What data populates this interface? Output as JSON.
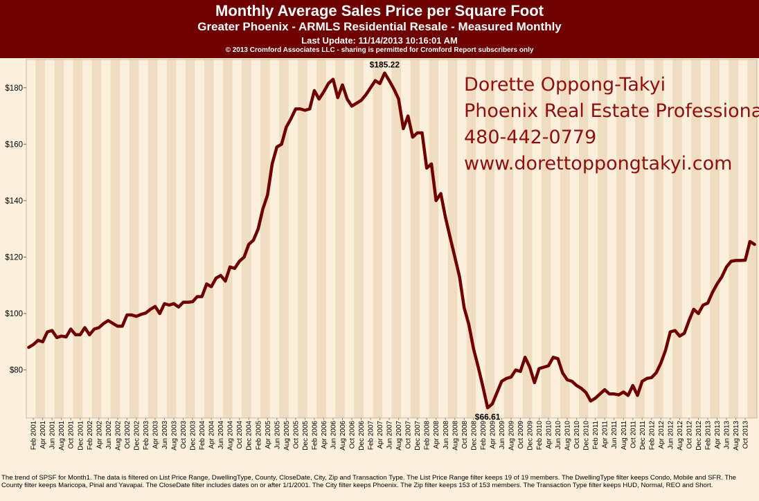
{
  "header": {
    "title": "Monthly Average Sales Price per Square Foot",
    "subtitle": "Greater Phoenix - ARMLS Residential Resale - Measured Monthly",
    "last_update": "Last Update: 11/14/2013 10:16:01 AM",
    "copyright": "© 2013 Cromford Associates LLC - sharing is permitted for Cromford Report subscribers only"
  },
  "contact": {
    "name": "Dorette Oppong-Takyi",
    "role": "Phoenix Real Estate Professional",
    "phone": "480-442-0779",
    "website": "www.dorettoppongtakyi.com"
  },
  "colors": {
    "header_bg": "#6e0000",
    "line": "#6e0000",
    "band_light": "#fcf0dc",
    "band_dark": "#f0dcc0",
    "contact_text": "#8c1010"
  },
  "footer": {
    "note": "The trend of SPSF for Month1. The data is filtered on List Price Range, DwellingType, County, CloseDate, City, Zip and Transaction Type. The List Price Range filter keeps 19 of 19 members. The DwellingType filter keeps Condo, Mobile and SFR. The County filter keeps Maricopa, Pinal and Yavapai. The CloseDate filter includes dates on or after 1/1/2001. The City filter keeps Phoenix. The Zip filter keeps 153 of 153 members. The Transaction Type filter keeps HUD, Normal, REO and Short."
  },
  "chart_data": {
    "type": "line",
    "x_start": "Jan 2001",
    "x_end": "Oct 2013",
    "ylim": [
      63,
      190
    ],
    "y_ticks": [
      80,
      100,
      120,
      140,
      160,
      180
    ],
    "y_tick_labels": [
      "$80",
      "$100",
      "$120",
      "$140",
      "$160",
      "$180"
    ],
    "x_tick_labels": [
      "Feb 2001",
      "Apr 2001",
      "Jun 2001",
      "Aug 2001",
      "Oct 2001",
      "Dec 2001",
      "Feb 2002",
      "Apr 2002",
      "Jun 2002",
      "Aug 2002",
      "Oct 2002",
      "Dec 2002",
      "Feb 2003",
      "Apr 2003",
      "Jun 2003",
      "Aug 2003",
      "Oct 2003",
      "Dec 2003",
      "Feb 2004",
      "Apr 2004",
      "Jun 2004",
      "Aug 2004",
      "Oct 2004",
      "Dec 2004",
      "Feb 2005",
      "Apr 2005",
      "Jun 2005",
      "Aug 2005",
      "Oct 2005",
      "Dec 2005",
      "Feb 2006",
      "Apr 2006",
      "Jun 2006",
      "Aug 2006",
      "Oct 2006",
      "Dec 2006",
      "Feb 2007",
      "Apr 2007",
      "Jun 2007",
      "Aug 2007",
      "Oct 2007",
      "Dec 2007",
      "Feb 2008",
      "Apr 2008",
      "Jun 2008",
      "Aug 2008",
      "Oct 2008",
      "Dec 2008",
      "Feb 2009",
      "Apr 2009",
      "Jun 2009",
      "Aug 2009",
      "Oct 2009",
      "Dec 2009",
      "Feb 2010",
      "Apr 2010",
      "Jun 2010",
      "Aug 2010",
      "Oct 2010",
      "Dec 2010",
      "Feb 2011",
      "Apr 2011",
      "Jun 2011",
      "Aug 2011",
      "Oct 2011",
      "Dec 2011",
      "Feb 2012",
      "Apr 2012",
      "Jun 2012",
      "Aug 2012",
      "Oct 2012",
      "Dec 2012",
      "Feb 2013",
      "Apr 2013",
      "Jun 2013",
      "Aug 2013",
      "Oct 2013"
    ],
    "values": [
      88,
      89,
      90.5,
      90,
      93.5,
      94,
      91.5,
      92,
      91.7,
      94.5,
      92.5,
      92.5,
      95,
      92.5,
      94.5,
      95,
      96.5,
      97.5,
      96.5,
      95.5,
      95.5,
      99.5,
      99.5,
      99,
      99.7,
      100.2,
      101.5,
      102.5,
      100,
      103.5,
      103,
      103.5,
      102.3,
      104,
      104,
      104.2,
      106,
      106,
      110.5,
      109.5,
      112.5,
      113.5,
      111.5,
      116.5,
      116,
      118.5,
      120,
      124.5,
      126,
      130,
      137,
      142,
      153,
      159,
      160,
      166,
      169,
      172.5,
      172.5,
      172,
      172.5,
      179,
      176,
      178.5,
      181.5,
      183,
      176.5,
      181,
      176,
      173.5,
      174.5,
      175.5,
      177.5,
      180,
      182.5,
      181.5,
      185.22,
      182.5,
      179.5,
      176,
      165.5,
      170,
      162.5,
      164,
      164,
      151.5,
      153,
      140,
      142.5,
      134,
      127,
      120,
      113,
      102,
      96,
      87.5,
      81,
      74,
      66.61,
      68,
      72,
      76,
      77,
      77.5,
      80,
      79.5,
      84.5,
      81,
      75.5,
      80.5,
      81,
      81.5,
      84.5,
      84,
      79,
      76.5,
      76,
      74.5,
      73.5,
      72,
      69,
      70,
      71.5,
      73,
      71.5,
      71.5,
      71.2,
      72.2,
      71,
      74.5,
      71,
      76,
      77,
      77.3,
      79,
      82.5,
      87,
      93.5,
      94,
      92,
      93,
      97.5,
      101.5,
      100,
      103,
      103.7,
      107.5,
      110.5,
      113,
      116.5,
      118.5,
      118.8,
      118.8,
      118.9,
      125.5,
      124.5
    ],
    "annotations": [
      {
        "label": "$185.22",
        "value": 185.22,
        "position": "above"
      },
      {
        "label": "$66.61",
        "value": 66.61,
        "position": "below"
      }
    ],
    "grid": false,
    "legend": "none",
    "xlabel": "",
    "ylabel": ""
  }
}
